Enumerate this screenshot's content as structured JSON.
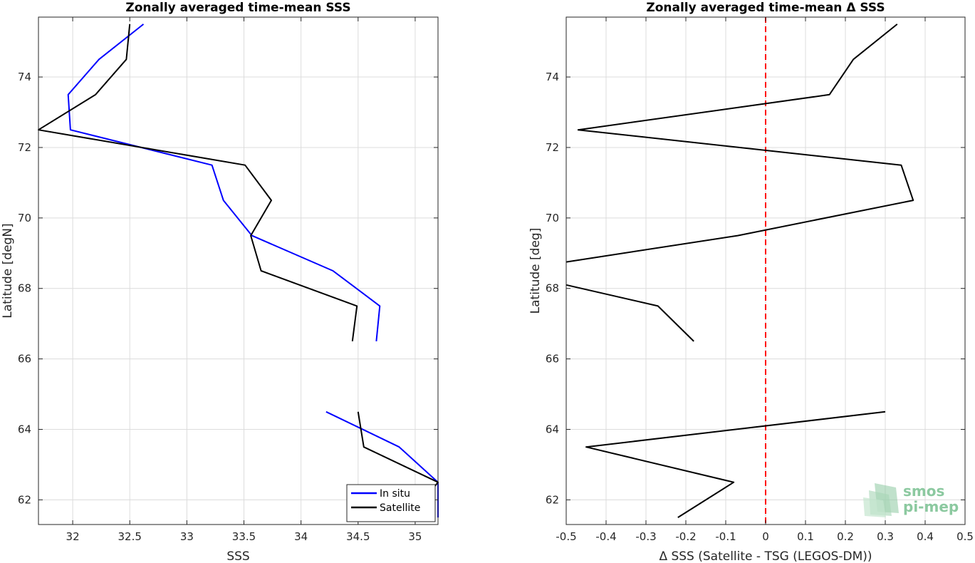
{
  "chart_data": [
    {
      "type": "line",
      "title": "Zonally averaged time-mean SSS",
      "xlabel": "SSS",
      "ylabel": "Latitude [degN]",
      "xlim": [
        31.7,
        35.2
      ],
      "ylim": [
        61.3,
        75.7
      ],
      "xticks": [
        "32",
        "32.5",
        "33",
        "33.5",
        "34",
        "34.5",
        "35"
      ],
      "yticks": [
        "62",
        "64",
        "66",
        "68",
        "70",
        "72",
        "74"
      ],
      "grid": true,
      "legend_position": "bottom-right",
      "series": [
        {
          "name": "In situ",
          "color": "#0000ff",
          "segments": [
            [
              [
                32.62,
                75.5
              ],
              [
                32.23,
                74.5
              ],
              [
                31.96,
                73.5
              ],
              [
                31.98,
                72.5
              ],
              [
                33.22,
                71.5
              ],
              [
                33.32,
                70.5
              ],
              [
                33.57,
                69.5
              ],
              [
                34.28,
                68.5
              ],
              [
                34.69,
                67.5
              ],
              [
                34.66,
                66.5
              ]
            ],
            [
              [
                34.22,
                64.5
              ],
              [
                34.86,
                63.5
              ],
              [
                35.2,
                62.5
              ],
              [
                35.2,
                61.5
              ]
            ]
          ]
        },
        {
          "name": "Satellite",
          "color": "#000000",
          "segments": [
            [
              [
                32.5,
                75.5
              ],
              [
                32.47,
                74.5
              ],
              [
                32.2,
                73.5
              ],
              [
                31.7,
                72.5
              ],
              [
                33.51,
                71.5
              ],
              [
                33.74,
                70.5
              ],
              [
                33.56,
                69.5
              ],
              [
                33.65,
                68.5
              ],
              [
                34.49,
                67.5
              ],
              [
                34.45,
                66.5
              ]
            ],
            [
              [
                34.5,
                64.5
              ],
              [
                34.55,
                63.5
              ],
              [
                35.2,
                62.5
              ],
              [
                35.15,
                62.3
              ]
            ]
          ]
        }
      ]
    },
    {
      "type": "line",
      "title": "Zonally averaged time-mean Δ SSS",
      "xlabel": "Δ SSS (Satellite - TSG (LEGOS-DM))",
      "ylabel": "Latitude [deg]",
      "xlim": [
        -0.5,
        0.5
      ],
      "ylim": [
        61.3,
        75.7
      ],
      "xticks": [
        "-0.5",
        "-0.4",
        "-0.3",
        "-0.2",
        "-0.1",
        "0",
        "0.1",
        "0.2",
        "0.3",
        "0.4",
        "0.5"
      ],
      "yticks": [
        "62",
        "64",
        "66",
        "68",
        "70",
        "72",
        "74"
      ],
      "grid": true,
      "reference_line": {
        "x": 0,
        "color": "#ff0000",
        "style": "dashed"
      },
      "series": [
        {
          "color": "#000000",
          "segments": [
            [
              [
                0.33,
                75.5
              ],
              [
                0.22,
                74.5
              ],
              [
                0.16,
                73.5
              ],
              [
                -0.47,
                72.5
              ],
              [
                0.34,
                71.5
              ],
              [
                0.37,
                70.5
              ],
              [
                -0.07,
                69.5
              ],
              [
                -0.5,
                68.75
              ]
            ],
            [
              [
                -0.5,
                68.1
              ],
              [
                -0.27,
                67.5
              ],
              [
                -0.18,
                66.5
              ]
            ],
            [
              [
                0.3,
                64.5
              ],
              [
                -0.45,
                63.5
              ],
              [
                -0.08,
                62.5
              ],
              [
                -0.22,
                61.5
              ]
            ]
          ]
        }
      ]
    }
  ],
  "logo": {
    "line1": "smos",
    "line2": "pi-mep"
  }
}
